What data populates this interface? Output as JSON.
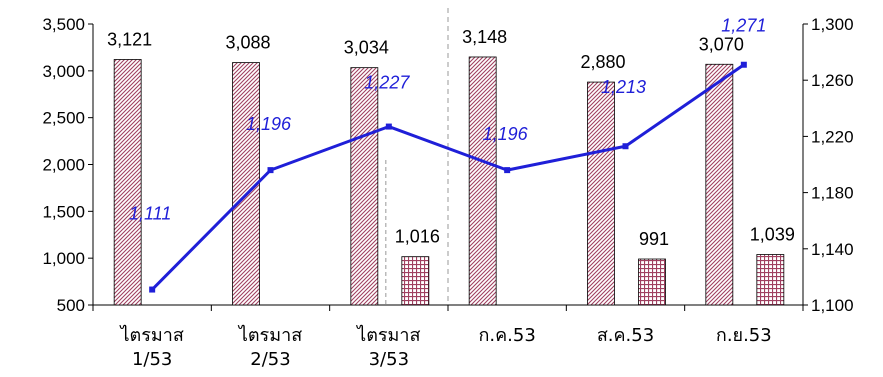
{
  "chart_data": {
    "type": "bar",
    "categories": [
      [
        "ไตรมาส",
        "1/53"
      ],
      [
        "ไตรมาส",
        "2/53"
      ],
      [
        "ไตรมาส",
        "3/53"
      ],
      [
        "ก.ค.53"
      ],
      [
        "ส.ค.53"
      ],
      [
        "ก.ย.53"
      ]
    ],
    "series": [
      {
        "kind": "bar",
        "axis": "left",
        "color": "#a04060",
        "pattern": "diagonal-hatch",
        "values": [
          3121,
          3088,
          3034,
          3148,
          2880,
          3070
        ],
        "labels": [
          "3,121",
          "3,088",
          "3,034",
          "3,148",
          "2,880",
          "3,070"
        ]
      },
      {
        "kind": "bar",
        "axis": "left",
        "color": "#a04060",
        "pattern": "grid",
        "values": [
          null,
          null,
          1016,
          null,
          991,
          1039
        ],
        "labels": [
          "",
          "",
          "1,016",
          "",
          "991",
          "1,039"
        ]
      },
      {
        "kind": "line",
        "axis": "right",
        "color": "#1f1fd8",
        "values": [
          1111,
          1196,
          1227,
          1196,
          1213,
          1271
        ],
        "labels": [
          "1,111",
          "1,196",
          "1,227",
          "1,196",
          "1,213",
          "1,271"
        ]
      }
    ],
    "y_left": {
      "min": 500,
      "max": 3500,
      "step": 500,
      "tick_labels": [
        "500",
        "1,000",
        "1,500",
        "2,000",
        "2,500",
        "3,000",
        "3,500"
      ]
    },
    "y_right": {
      "min": 1100,
      "max": 1300,
      "step": 40,
      "tick_labels": [
        "1,100",
        "1,140",
        "1,180",
        "1,220",
        "1,260",
        "1,300"
      ]
    },
    "grid": false,
    "separators": [
      "between-cat-3-and-4-dashed"
    ],
    "title": "",
    "xlabel": "",
    "ylabel": ""
  }
}
